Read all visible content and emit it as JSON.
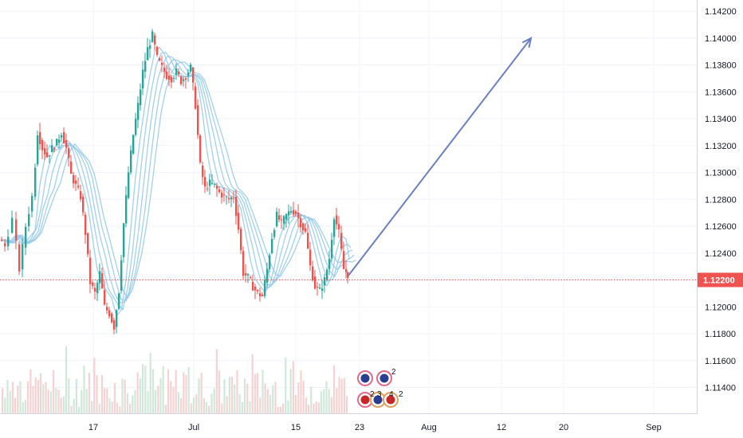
{
  "chart_data": {
    "type": "candlestick",
    "symbol_hint": "",
    "y_axis": {
      "ticks": [
        "1.14200",
        "1.14000",
        "1.13800",
        "1.13600",
        "1.13400",
        "1.13200",
        "1.13000",
        "1.12800",
        "1.12600",
        "1.12400",
        "1.12200",
        "1.12000",
        "1.11800",
        "1.11600",
        "1.11400"
      ],
      "range": [
        1.1128,
        1.143
      ]
    },
    "x_axis": {
      "ticks": [
        "17",
        "Jul",
        "15",
        "23",
        "Aug",
        "12",
        "20",
        "Sep"
      ]
    },
    "current_price": {
      "value": 1.122,
      "label": "1.12200",
      "color": "#ef5350"
    },
    "colors": {
      "up": "#26a69a",
      "down": "#ef5350",
      "ma": "#90c8ea",
      "arrow": "#6a7fc0",
      "grid": "#f0f3fa",
      "volume_up": "#cfe8d9",
      "volume_down": "#f6d2d2"
    },
    "moving_averages": 5,
    "volume": true,
    "grid": true,
    "projection_arrow": {
      "from": [
        1.1224,
        "23 Jul"
      ],
      "to": [
        1.14,
        "late Aug"
      ]
    },
    "event_markers": {
      "row1": [
        "",
        "2"
      ],
      "row2": [
        "2",
        "3",
        "4",
        "2"
      ]
    }
  }
}
